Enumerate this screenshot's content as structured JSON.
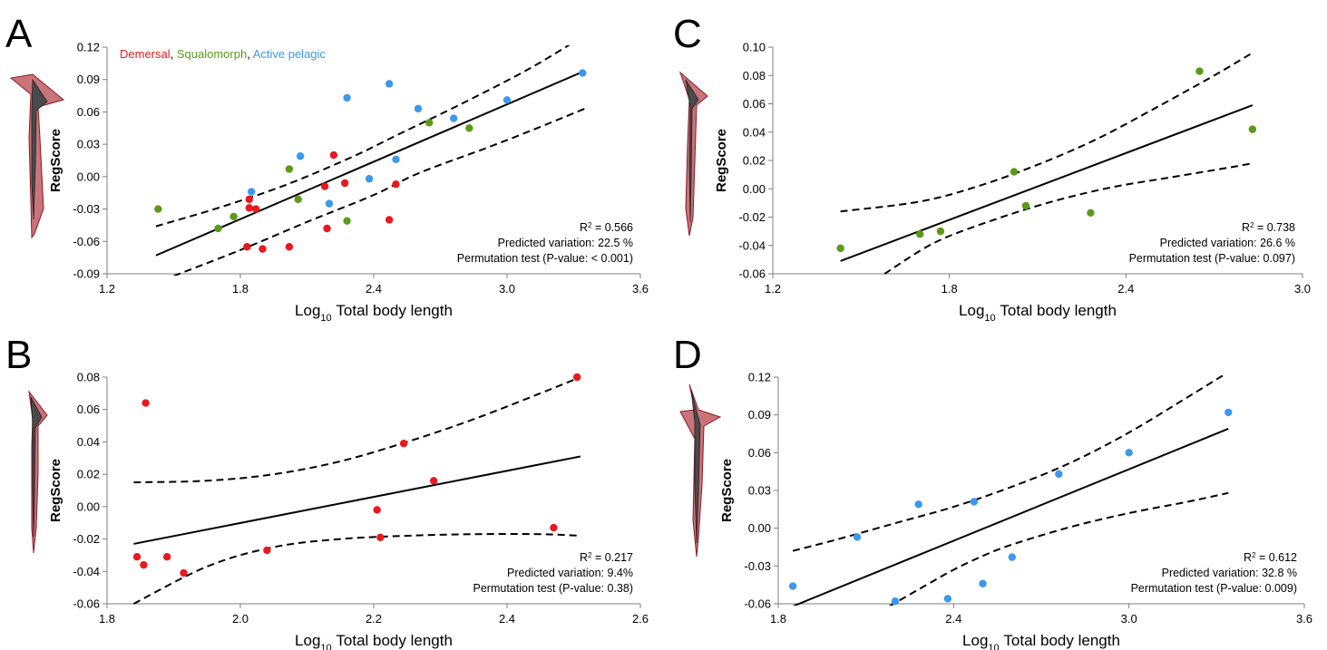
{
  "colors": {
    "demersal": "#e8191e",
    "squalomorph": "#5b9a18",
    "active_pelagic": "#3b98ea",
    "silhouette_fill": "#c9737a",
    "silhouette_stroke": "#8b1a22",
    "silhouette_inner": "#4a4a4a"
  },
  "chart_data": [
    {
      "panel": "A",
      "type": "scatter",
      "xlabel_main": "Log",
      "xlabel_sub": "10",
      "xlabel_rest": " Total body length",
      "ylabel": "RegScore",
      "xlim": [
        1.2,
        3.6
      ],
      "ylim": [
        -0.09,
        0.12
      ],
      "xticks": [
        "1.2",
        "1.8",
        "2.4",
        "3.0",
        "3.6"
      ],
      "yticks": [
        "-0.09",
        "-0.06",
        "-0.03",
        "0.00",
        "0.03",
        "0.06",
        "0.09",
        "0.12"
      ],
      "legend": [
        {
          "label": "Demersal",
          "color_key": "demersal",
          "sep": ", "
        },
        {
          "label": "Squalomorph",
          "color_key": "squalomorph",
          "sep": ", "
        },
        {
          "label": "Active pelagic",
          "color_key": "active_pelagic",
          "sep": ""
        }
      ],
      "stats": {
        "r2_label": "R",
        "r2_sup": "2",
        "r2_value": " = 0.566",
        "predicted": "Predicted variation: 22.5 %",
        "permutation": "Permutation test (P-value: < 0.001)"
      },
      "fit": {
        "x": [
          1.42,
          3.35
        ],
        "y": [
          -0.073,
          0.098
        ]
      },
      "ci_upper": {
        "x": [
          1.42,
          1.7,
          2.0,
          2.3,
          2.5,
          2.8,
          3.1,
          3.35
        ],
        "y": [
          -0.046,
          -0.029,
          -0.008,
          0.018,
          0.038,
          0.068,
          0.1,
          0.131
        ]
      },
      "ci_lower": {
        "x": [
          1.5,
          1.8,
          2.1,
          2.4,
          2.6,
          2.9,
          3.1,
          3.35
        ],
        "y": [
          -0.092,
          -0.068,
          -0.042,
          -0.017,
          0.003,
          0.026,
          0.042,
          0.063
        ]
      },
      "series": [
        {
          "color_key": "demersal",
          "points": [
            [
              1.84,
              -0.021
            ],
            [
              1.84,
              -0.029
            ],
            [
              1.87,
              -0.03
            ],
            [
              1.83,
              -0.065
            ],
            [
              1.9,
              -0.067
            ],
            [
              2.02,
              -0.065
            ],
            [
              2.19,
              -0.048
            ],
            [
              2.18,
              -0.009
            ],
            [
              2.22,
              0.02
            ],
            [
              2.27,
              -0.006
            ],
            [
              2.47,
              -0.04
            ],
            [
              2.5,
              -0.007
            ]
          ]
        },
        {
          "color_key": "squalomorph",
          "points": [
            [
              1.43,
              -0.03
            ],
            [
              1.7,
              -0.048
            ],
            [
              1.77,
              -0.037
            ],
            [
              2.02,
              0.007
            ],
            [
              2.06,
              -0.021
            ],
            [
              2.28,
              -0.041
            ],
            [
              2.65,
              0.05
            ],
            [
              2.83,
              0.045
            ]
          ]
        },
        {
          "color_key": "active_pelagic",
          "points": [
            [
              1.85,
              -0.014
            ],
            [
              2.07,
              0.019
            ],
            [
              2.2,
              -0.025
            ],
            [
              2.28,
              0.073
            ],
            [
              2.38,
              -0.002
            ],
            [
              2.47,
              0.086
            ],
            [
              2.5,
              0.016
            ],
            [
              2.6,
              0.063
            ],
            [
              2.76,
              0.054
            ],
            [
              3.0,
              0.071
            ],
            [
              3.34,
              0.096
            ]
          ]
        }
      ]
    },
    {
      "panel": "B",
      "type": "scatter",
      "xlabel_main": "Log",
      "xlabel_sub": "10",
      "xlabel_rest": " Total body length",
      "ylabel": "RegScore",
      "xlim": [
        1.8,
        2.6
      ],
      "ylim": [
        -0.06,
        0.08
      ],
      "xticks": [
        "1.8",
        "2.0",
        "2.2",
        "2.4",
        "2.6"
      ],
      "yticks": [
        "-0.06",
        "-0.04",
        "-0.02",
        "0.00",
        "0.02",
        "0.04",
        "0.06",
        "0.08"
      ],
      "stats": {
        "r2_label": "R",
        "r2_sup": "2",
        "r2_value": " = 0.217",
        "predicted": "Predicted variation: 9.4%",
        "permutation": "Permutation test (P-value: 0.38)"
      },
      "fit": {
        "x": [
          1.84,
          2.51
        ],
        "y": [
          -0.023,
          0.031
        ]
      },
      "ci_upper": {
        "x": [
          1.84,
          1.95,
          2.05,
          2.15,
          2.25,
          2.35,
          2.45,
          2.51
        ],
        "y": [
          0.015,
          0.016,
          0.02,
          0.028,
          0.04,
          0.054,
          0.07,
          0.08
        ]
      },
      "ci_lower": {
        "x": [
          1.84,
          1.95,
          2.05,
          2.15,
          2.25,
          2.35,
          2.45,
          2.51
        ],
        "y": [
          -0.06,
          -0.037,
          -0.025,
          -0.02,
          -0.018,
          -0.017,
          -0.017,
          -0.018
        ]
      },
      "series": [
        {
          "color_key": "demersal",
          "points": [
            [
              1.845,
              -0.031
            ],
            [
              1.855,
              -0.036
            ],
            [
              1.858,
              0.064
            ],
            [
              1.89,
              -0.031
            ],
            [
              1.915,
              -0.041
            ],
            [
              2.04,
              -0.027
            ],
            [
              2.205,
              -0.002
            ],
            [
              2.21,
              -0.019
            ],
            [
              2.245,
              0.039
            ],
            [
              2.29,
              0.016
            ],
            [
              2.47,
              -0.013
            ],
            [
              2.505,
              0.08
            ]
          ]
        }
      ]
    },
    {
      "panel": "C",
      "type": "scatter",
      "xlabel_main": "Log",
      "xlabel_sub": "10",
      "xlabel_rest": " Total body length",
      "ylabel": "RegScore",
      "xlim": [
        1.2,
        3.0
      ],
      "ylim": [
        -0.06,
        0.1
      ],
      "xticks": [
        "1.2",
        "1.8",
        "2.4",
        "3.0"
      ],
      "yticks": [
        "-0.06",
        "-0.04",
        "-0.02",
        "0.00",
        "0.02",
        "0.04",
        "0.06",
        "0.08",
        "0.10"
      ],
      "stats": {
        "r2_label": "R",
        "r2_sup": "2",
        "r2_value": " = 0.738",
        "predicted": "Predicted variation: 26.6 %",
        "permutation": "Permutation test (P-value: 0.097)"
      },
      "fit": {
        "x": [
          1.43,
          2.83
        ],
        "y": [
          -0.051,
          0.059
        ]
      },
      "ci_upper": {
        "x": [
          1.43,
          1.7,
          1.9,
          2.1,
          2.3,
          2.5,
          2.7,
          2.83
        ],
        "y": [
          -0.016,
          -0.009,
          0.002,
          0.017,
          0.035,
          0.057,
          0.08,
          0.096
        ]
      },
      "ci_lower": {
        "x": [
          1.58,
          1.75,
          1.95,
          2.15,
          2.35,
          2.55,
          2.75,
          2.83
        ],
        "y": [
          -0.06,
          -0.038,
          -0.022,
          -0.009,
          0.001,
          0.008,
          0.015,
          0.018
        ]
      },
      "series": [
        {
          "color_key": "squalomorph",
          "points": [
            [
              1.43,
              -0.042
            ],
            [
              1.7,
              -0.032
            ],
            [
              1.77,
              -0.03
            ],
            [
              2.02,
              0.012
            ],
            [
              2.06,
              -0.012
            ],
            [
              2.28,
              -0.017
            ],
            [
              2.65,
              0.083
            ],
            [
              2.83,
              0.042
            ]
          ]
        }
      ]
    },
    {
      "panel": "D",
      "type": "scatter",
      "xlabel_main": "Log",
      "xlabel_sub": "10",
      "xlabel_rest": " Total body length",
      "ylabel": "RegScore",
      "xlim": [
        1.8,
        3.6
      ],
      "ylim": [
        -0.06,
        0.12
      ],
      "xticks": [
        "1.8",
        "2.4",
        "3.0",
        "3.6"
      ],
      "yticks": [
        "-0.06",
        "-0.03",
        "0.00",
        "0.03",
        "0.06",
        "0.09",
        "0.12"
      ],
      "stats": {
        "r2_label": "R",
        "r2_sup": "2",
        "r2_value": " = 0.612",
        "predicted": "Predicted variation: 32.8 %",
        "permutation": "Permutation test (P-value: 0.009)"
      },
      "fit": {
        "x": [
          1.85,
          3.34
        ],
        "y": [
          -0.062,
          0.079
        ]
      },
      "ci_upper": {
        "x": [
          1.85,
          2.0,
          2.2,
          2.4,
          2.6,
          2.8,
          3.0,
          3.2,
          3.34
        ],
        "y": [
          -0.018,
          -0.009,
          0.004,
          0.017,
          0.033,
          0.052,
          0.076,
          0.104,
          0.124
        ]
      },
      "ci_lower": {
        "x": [
          2.18,
          2.3,
          2.4,
          2.5,
          2.6,
          2.8,
          3.0,
          3.2,
          3.34
        ],
        "y": [
          -0.062,
          -0.046,
          -0.033,
          -0.022,
          -0.013,
          0.001,
          0.012,
          0.021,
          0.028
        ]
      },
      "series": [
        {
          "color_key": "active_pelagic",
          "points": [
            [
              1.85,
              -0.046
            ],
            [
              2.07,
              -0.007
            ],
            [
              2.2,
              -0.058
            ],
            [
              2.28,
              0.019
            ],
            [
              2.38,
              -0.056
            ],
            [
              2.47,
              0.021
            ],
            [
              2.5,
              -0.044
            ],
            [
              2.6,
              -0.023
            ],
            [
              2.76,
              0.043
            ],
            [
              3.0,
              0.06
            ],
            [
              3.34,
              0.092
            ]
          ]
        }
      ]
    }
  ]
}
